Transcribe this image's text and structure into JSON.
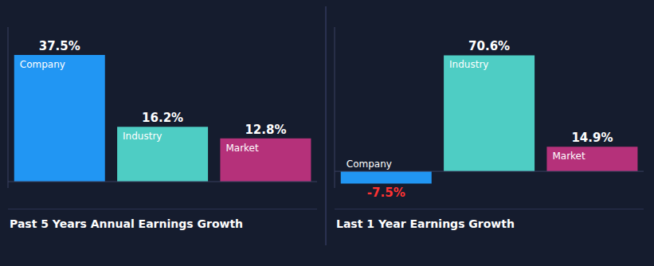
{
  "chart_data": [
    {
      "type": "bar",
      "title": "Past 5 Years Annual Earnings Growth",
      "categories": [
        "Company",
        "Industry",
        "Market"
      ],
      "values": [
        37.5,
        16.2,
        12.8
      ],
      "value_labels": [
        "37.5%",
        "16.2%",
        "12.8%"
      ],
      "colors": [
        "#2196f3",
        "#4ecdc4",
        "#b5317a"
      ],
      "ylim": [
        -1.875,
        45.75
      ],
      "tick_labels": false,
      "grid": false,
      "data_labels": true
    },
    {
      "type": "bar",
      "title": "Last 1 Year Earnings Growth",
      "categories": [
        "Company",
        "Industry",
        "Market"
      ],
      "values": [
        -7.5,
        70.6,
        14.9
      ],
      "value_labels": [
        "-7.5%",
        "70.6%",
        "14.9%"
      ],
      "colors": [
        "#2196f3",
        "#4ecdc4",
        "#b5317a"
      ],
      "ylim": [
        -10.125,
        87.782
      ],
      "tick_labels": false,
      "grid": false,
      "data_labels": true
    }
  ]
}
